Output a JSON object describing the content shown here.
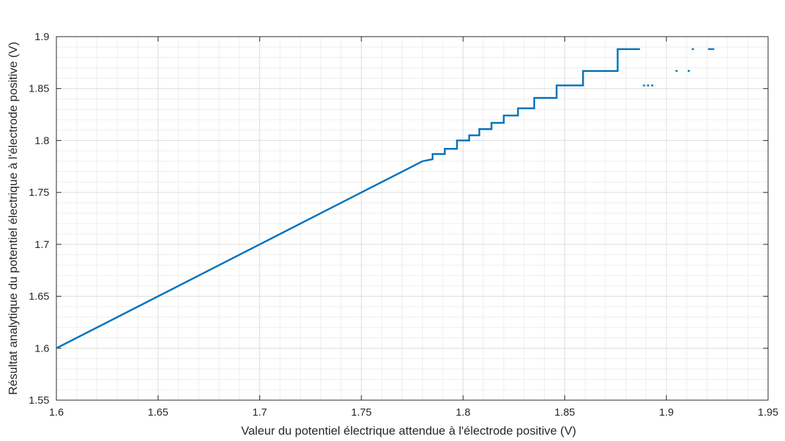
{
  "chart_data": {
    "type": "line",
    "title": "",
    "xlabel": "Valeur du potentiel électrique attendue à l'électrode positive (V)",
    "ylabel": "Résultat analytique du potentiel électrique à l'électrode positive (V)",
    "xlim": [
      1.6,
      1.95
    ],
    "ylim": [
      1.55,
      1.9
    ],
    "grid": "on (major and minor)",
    "line_color": "#0072BD",
    "x_ticks": [
      "1.6",
      "1.65",
      "1.7",
      "1.75",
      "1.8",
      "1.85",
      "1.9",
      "1.95"
    ],
    "y_ticks": [
      "1.55",
      "1.6",
      "1.65",
      "1.7",
      "1.75",
      "1.8",
      "1.85",
      "1.9"
    ],
    "series": [
      {
        "style": "line",
        "x": [
          1.6,
          1.7,
          1.72,
          1.75,
          1.77,
          1.78,
          1.785,
          1.785,
          1.791,
          1.791,
          1.797,
          1.797,
          1.803,
          1.803,
          1.808,
          1.808,
          1.814,
          1.814,
          1.82,
          1.82,
          1.827,
          1.827,
          1.835,
          1.835,
          1.846,
          1.846,
          1.859,
          1.859,
          1.876,
          1.876,
          1.887
        ],
        "y": [
          1.6,
          1.7,
          1.72,
          1.75,
          1.77,
          1.78,
          1.782,
          1.787,
          1.787,
          1.792,
          1.792,
          1.8,
          1.8,
          1.805,
          1.805,
          1.811,
          1.811,
          1.817,
          1.817,
          1.824,
          1.824,
          1.831,
          1.831,
          1.841,
          1.841,
          1.853,
          1.853,
          1.867,
          1.867,
          1.888,
          1.888
        ]
      },
      {
        "style": "scattered points",
        "x": [
          1.889,
          1.891,
          1.893,
          1.905,
          1.911,
          1.913,
          1.921,
          1.922,
          1.923
        ],
        "y": [
          1.853,
          1.853,
          1.853,
          1.867,
          1.867,
          1.888,
          1.888,
          1.888,
          1.888
        ]
      }
    ]
  }
}
